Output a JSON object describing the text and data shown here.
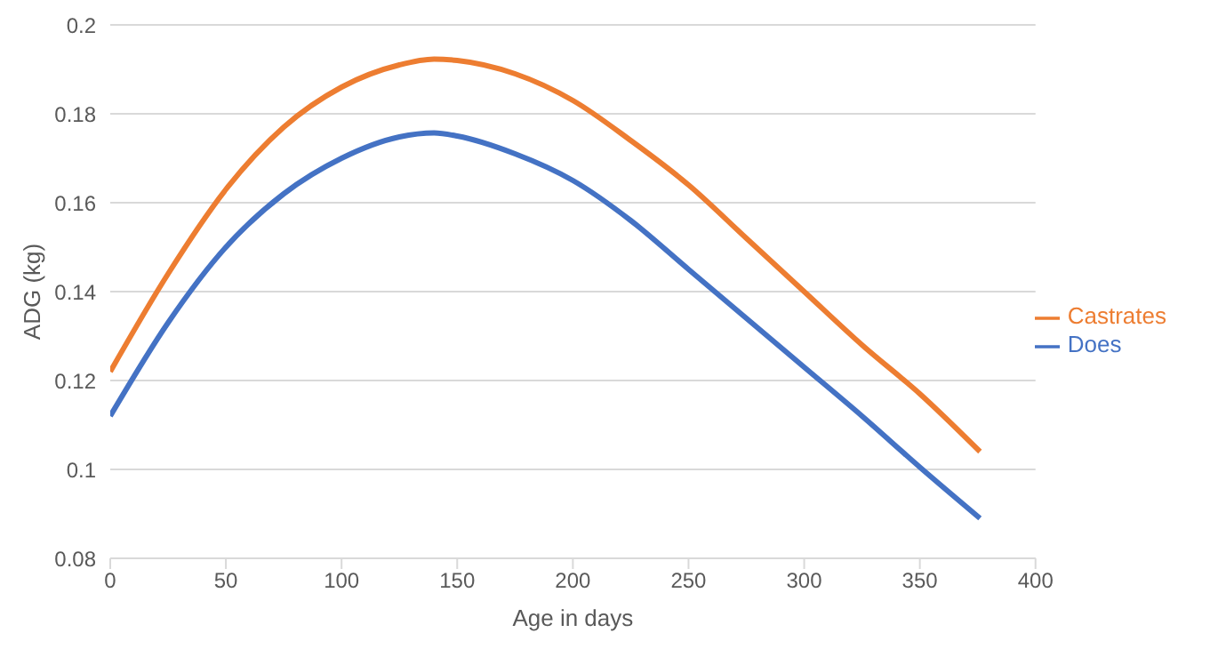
{
  "chart_data": {
    "type": "line",
    "xlabel": "Age in days",
    "ylabel": "ADG (kg)",
    "x": [
      0,
      25,
      50,
      75,
      100,
      125,
      140,
      150,
      175,
      200,
      225,
      250,
      275,
      300,
      325,
      350,
      376
    ],
    "series": [
      {
        "name": "Does",
        "color": "#4472c4",
        "values": [
          0.112,
          0.133,
          0.15,
          0.162,
          0.17,
          0.1748,
          0.1757,
          0.175,
          0.171,
          0.165,
          0.156,
          0.145,
          0.134,
          0.123,
          0.112,
          0.1005,
          0.089
        ]
      },
      {
        "name": "Castrates",
        "color": "#ed7d31",
        "values": [
          0.122,
          0.144,
          0.163,
          0.177,
          0.186,
          0.191,
          0.1923,
          0.192,
          0.189,
          0.183,
          0.174,
          0.164,
          0.152,
          0.14,
          0.128,
          0.117,
          0.104
        ]
      }
    ],
    "xlim": [
      0,
      400
    ],
    "xticks": [
      0,
      50,
      100,
      150,
      200,
      250,
      300,
      350,
      400
    ],
    "ylim": [
      0.08,
      0.2
    ],
    "yticks": [
      0.08,
      0.1,
      0.12,
      0.14,
      0.16,
      0.18,
      0.2
    ],
    "grid": "y",
    "legend": "right",
    "marker": "none",
    "line_style": "solid"
  }
}
